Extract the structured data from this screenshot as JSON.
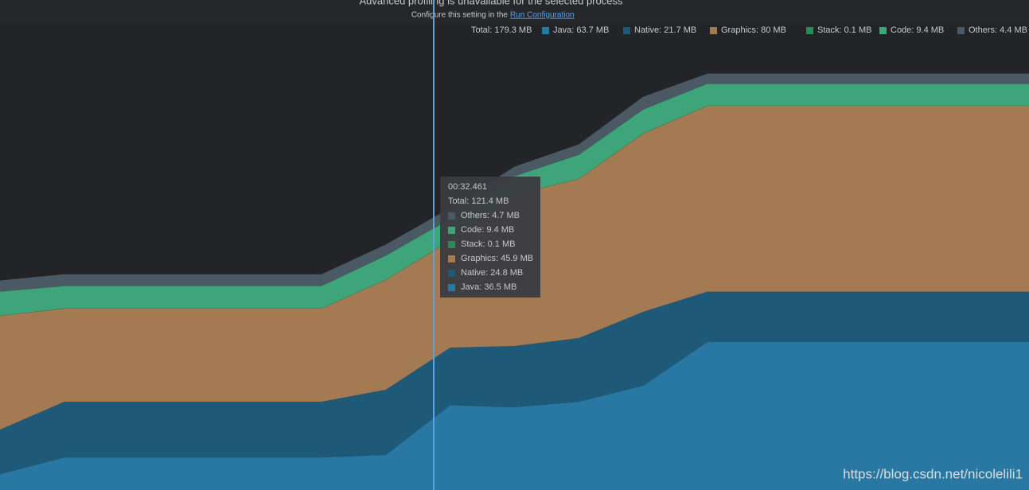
{
  "header": {
    "title": "Advanced profiling is unavailable for the selected process",
    "subtitle": "Configure this setting in the",
    "link": "Run Configuration"
  },
  "chart_data": {
    "type": "stacked-area",
    "total": "Total: 179.3 MB",
    "categories": [
      null,
      null,
      null,
      null,
      null,
      null,
      null,
      null,
      null,
      null,
      null,
      null,
      null,
      null,
      null,
      null,
      null
    ],
    "series": [
      {
        "name": "Java: 63.7 MB",
        "color": "#2878a3",
        "values": [
          6.8,
          14.0,
          14.0,
          14.0,
          14.0,
          14.0,
          15.1,
          36.5,
          35.6,
          38.0,
          44.9,
          63.7,
          63.7,
          63.7,
          63.7,
          63.7,
          63.7
        ]
      },
      {
        "name": "Native: 21.7 MB",
        "color": "#1e5a78",
        "values": [
          19.2,
          24.0,
          24.0,
          24.0,
          24.0,
          24.0,
          28.1,
          24.8,
          26.4,
          27.4,
          31.8,
          21.7,
          21.7,
          21.7,
          21.7,
          21.7,
          21.7
        ]
      },
      {
        "name": "Graphics: 80 MB",
        "color": "#a47a52",
        "values": [
          49.0,
          40.1,
          40.1,
          40.1,
          40.1,
          40.1,
          47.3,
          45.9,
          65.1,
          68.5,
          76.7,
          80,
          80,
          80,
          80,
          80,
          80
        ]
      },
      {
        "name": "Stack: 0.1 MB",
        "color": "#2a8a5c",
        "values": [
          0.1,
          0.1,
          0.1,
          0.1,
          0.1,
          0.1,
          0.1,
          0.1,
          0.1,
          0.1,
          0.1,
          0.1,
          0.1,
          0.1,
          0.1,
          0.1,
          0.1
        ]
      },
      {
        "name": "Code: 9.4 MB",
        "color": "#3ea479",
        "values": [
          10.3,
          9.6,
          9.6,
          9.6,
          9.6,
          9.6,
          10.3,
          9.4,
          7.9,
          10.3,
          10.3,
          9.4,
          9.4,
          9.4,
          9.4,
          9.4,
          9.4
        ]
      },
      {
        "name": "Others: 4.4 MB",
        "color": "#4a5963",
        "values": [
          4.8,
          5.1,
          5.1,
          5.1,
          5.1,
          5.1,
          4.8,
          4.7,
          4.1,
          4.5,
          5.5,
          4.4,
          4.4,
          4.4,
          4.4,
          4.4,
          4.4
        ]
      }
    ],
    "ylim": [
      0,
      200
    ]
  },
  "tooltip": {
    "time": "00:32.461",
    "total": "Total: 121.4 MB",
    "items": [
      "Others: 4.7 MB",
      "Code: 9.4 MB",
      "Stack: 0.1 MB",
      "Graphics: 45.9 MB",
      "Native: 24.8 MB",
      "Java: 36.5 MB"
    ]
  },
  "watermark": "https://blog.csdn.net/nicolelili1"
}
